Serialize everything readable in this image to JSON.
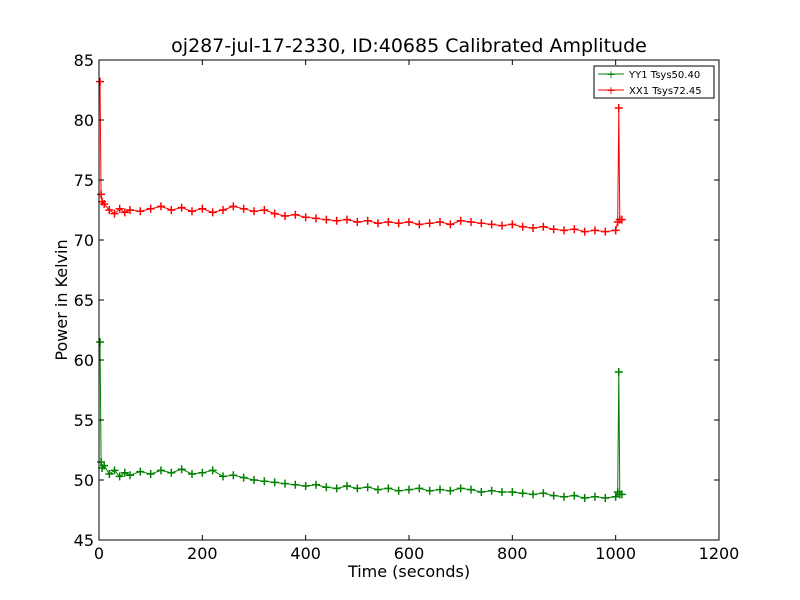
{
  "chart_data": {
    "type": "line",
    "title": "oj287-jul-17-2330, ID:40685 Calibrated Amplitude",
    "xlabel": "Time (seconds)",
    "ylabel": "Power in Kelvin",
    "xlim": [
      0,
      1200
    ],
    "ylim": [
      45,
      85
    ],
    "xticks": [
      0,
      200,
      400,
      600,
      800,
      1000,
      1200
    ],
    "yticks": [
      45,
      50,
      55,
      60,
      65,
      70,
      75,
      80,
      85
    ],
    "grid": false,
    "legend_position": "top-right",
    "marker": "plus",
    "series": [
      {
        "name": "YY1 Tsys50.40",
        "color": "#008000",
        "x": [
          2,
          4,
          6,
          10,
          20,
          30,
          40,
          50,
          60,
          80,
          100,
          120,
          140,
          160,
          180,
          200,
          220,
          240,
          260,
          280,
          300,
          320,
          340,
          360,
          380,
          400,
          420,
          440,
          460,
          480,
          500,
          520,
          540,
          560,
          580,
          600,
          620,
          640,
          660,
          680,
          700,
          720,
          740,
          760,
          780,
          800,
          820,
          840,
          860,
          880,
          900,
          920,
          940,
          960,
          980,
          1000,
          1004,
          1006,
          1008,
          1012
        ],
        "y": [
          61.5,
          51.5,
          51.0,
          51.2,
          50.5,
          50.8,
          50.3,
          50.6,
          50.4,
          50.7,
          50.5,
          50.8,
          50.6,
          50.9,
          50.5,
          50.6,
          50.8,
          50.3,
          50.4,
          50.2,
          50.0,
          49.9,
          49.8,
          49.7,
          49.6,
          49.5,
          49.6,
          49.4,
          49.3,
          49.5,
          49.3,
          49.4,
          49.2,
          49.3,
          49.1,
          49.2,
          49.3,
          49.1,
          49.2,
          49.1,
          49.3,
          49.2,
          49.0,
          49.1,
          49.0,
          49.0,
          48.9,
          48.8,
          48.9,
          48.7,
          48.6,
          48.7,
          48.5,
          48.6,
          48.5,
          48.6,
          49.0,
          59.0,
          48.8,
          48.8
        ]
      },
      {
        "name": "XX1 Tsys72.45",
        "color": "#ff0000",
        "x": [
          2,
          4,
          6,
          10,
          20,
          30,
          40,
          50,
          60,
          80,
          100,
          120,
          140,
          160,
          180,
          200,
          220,
          240,
          260,
          280,
          300,
          320,
          340,
          360,
          380,
          400,
          420,
          440,
          460,
          480,
          500,
          520,
          540,
          560,
          580,
          600,
          620,
          640,
          660,
          680,
          700,
          720,
          740,
          760,
          780,
          800,
          820,
          840,
          860,
          880,
          900,
          920,
          940,
          960,
          980,
          1000,
          1004,
          1006,
          1008,
          1012
        ],
        "y": [
          83.2,
          73.8,
          73.2,
          73.0,
          72.5,
          72.2,
          72.6,
          72.3,
          72.5,
          72.4,
          72.6,
          72.8,
          72.5,
          72.7,
          72.4,
          72.6,
          72.3,
          72.5,
          72.8,
          72.6,
          72.4,
          72.5,
          72.2,
          72.0,
          72.1,
          71.9,
          71.8,
          71.7,
          71.6,
          71.7,
          71.5,
          71.6,
          71.4,
          71.5,
          71.4,
          71.5,
          71.3,
          71.4,
          71.5,
          71.3,
          71.6,
          71.5,
          71.4,
          71.3,
          71.2,
          71.3,
          71.1,
          71.0,
          71.1,
          70.9,
          70.8,
          70.9,
          70.7,
          70.8,
          70.7,
          70.8,
          71.5,
          81.0,
          71.7,
          71.7
        ]
      }
    ]
  }
}
